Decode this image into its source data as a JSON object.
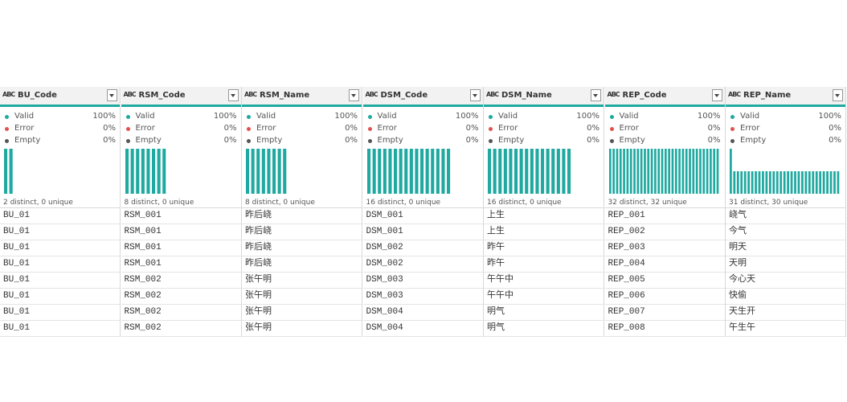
{
  "type_icon": "ABC",
  "columns": [
    {
      "name": "BU_Code",
      "quality": [
        {
          "label": "Valid",
          "value": "100%"
        },
        {
          "label": "Error",
          "value": "0%"
        },
        {
          "label": "Empty",
          "value": "0%"
        }
      ],
      "distribution": [
        16,
        16
      ],
      "summary": "2 distinct, 0 unique"
    },
    {
      "name": "RSM_Code",
      "quality": [
        {
          "label": "Valid",
          "value": "100%"
        },
        {
          "label": "Error",
          "value": "0%"
        },
        {
          "label": "Empty",
          "value": "0%"
        }
      ],
      "distribution": [
        4,
        4,
        4,
        4,
        4,
        4,
        4,
        4
      ],
      "summary": "8 distinct, 0 unique"
    },
    {
      "name": "RSM_Name",
      "quality": [
        {
          "label": "Valid",
          "value": "100%"
        },
        {
          "label": "Error",
          "value": "0%"
        },
        {
          "label": "Empty",
          "value": "0%"
        }
      ],
      "distribution": [
        4,
        4,
        4,
        4,
        4,
        4,
        4,
        4
      ],
      "summary": "8 distinct, 0 unique"
    },
    {
      "name": "DSM_Code",
      "quality": [
        {
          "label": "Valid",
          "value": "100%"
        },
        {
          "label": "Error",
          "value": "0%"
        },
        {
          "label": "Empty",
          "value": "0%"
        }
      ],
      "distribution": [
        2,
        2,
        2,
        2,
        2,
        2,
        2,
        2,
        2,
        2,
        2,
        2,
        2,
        2,
        2,
        2
      ],
      "summary": "16 distinct, 0 unique"
    },
    {
      "name": "DSM_Name",
      "quality": [
        {
          "label": "Valid",
          "value": "100%"
        },
        {
          "label": "Error",
          "value": "0%"
        },
        {
          "label": "Empty",
          "value": "0%"
        }
      ],
      "distribution": [
        2,
        2,
        2,
        2,
        2,
        2,
        2,
        2,
        2,
        2,
        2,
        2,
        2,
        2,
        2,
        2
      ],
      "summary": "16 distinct, 0 unique"
    },
    {
      "name": "REP_Code",
      "quality": [
        {
          "label": "Valid",
          "value": "100%"
        },
        {
          "label": "Error",
          "value": "0%"
        },
        {
          "label": "Empty",
          "value": "0%"
        }
      ],
      "distribution": [
        1,
        1,
        1,
        1,
        1,
        1,
        1,
        1,
        1,
        1,
        1,
        1,
        1,
        1,
        1,
        1,
        1,
        1,
        1,
        1,
        1,
        1,
        1,
        1,
        1,
        1,
        1,
        1,
        1,
        1,
        1,
        1
      ],
      "summary": "32 distinct, 32 unique"
    },
    {
      "name": "REP_Name",
      "quality": [
        {
          "label": "Valid",
          "value": "100%"
        },
        {
          "label": "Error",
          "value": "0%"
        },
        {
          "label": "Empty",
          "value": "0%"
        }
      ],
      "distribution": [
        2,
        1,
        1,
        1,
        1,
        1,
        1,
        1,
        1,
        1,
        1,
        1,
        1,
        1,
        1,
        1,
        1,
        1,
        1,
        1,
        1,
        1,
        1,
        1,
        1,
        1,
        1,
        1,
        1,
        1,
        1
      ],
      "summary": "31 distinct, 30 unique"
    }
  ],
  "rows": [
    [
      "BU_01",
      "RSM_001",
      "昨后峣",
      "DSM_001",
      "上生",
      "REP_001",
      "峣气"
    ],
    [
      "BU_01",
      "RSM_001",
      "昨后峣",
      "DSM_001",
      "上生",
      "REP_002",
      "今气"
    ],
    [
      "BU_01",
      "RSM_001",
      "昨后峣",
      "DSM_002",
      "昨午",
      "REP_003",
      "明天"
    ],
    [
      "BU_01",
      "RSM_001",
      "昨后峣",
      "DSM_002",
      "昨午",
      "REP_004",
      "天明"
    ],
    [
      "BU_01",
      "RSM_002",
      "张午明",
      "DSM_003",
      "午午中",
      "REP_005",
      "今心天"
    ],
    [
      "BU_01",
      "RSM_002",
      "张午明",
      "DSM_003",
      "午午中",
      "REP_006",
      "快偷"
    ],
    [
      "BU_01",
      "RSM_002",
      "张午明",
      "DSM_004",
      "明气",
      "REP_007",
      "天生开"
    ],
    [
      "BU_01",
      "RSM_002",
      "张午明",
      "DSM_004",
      "明气",
      "REP_008",
      "午生午"
    ]
  ]
}
